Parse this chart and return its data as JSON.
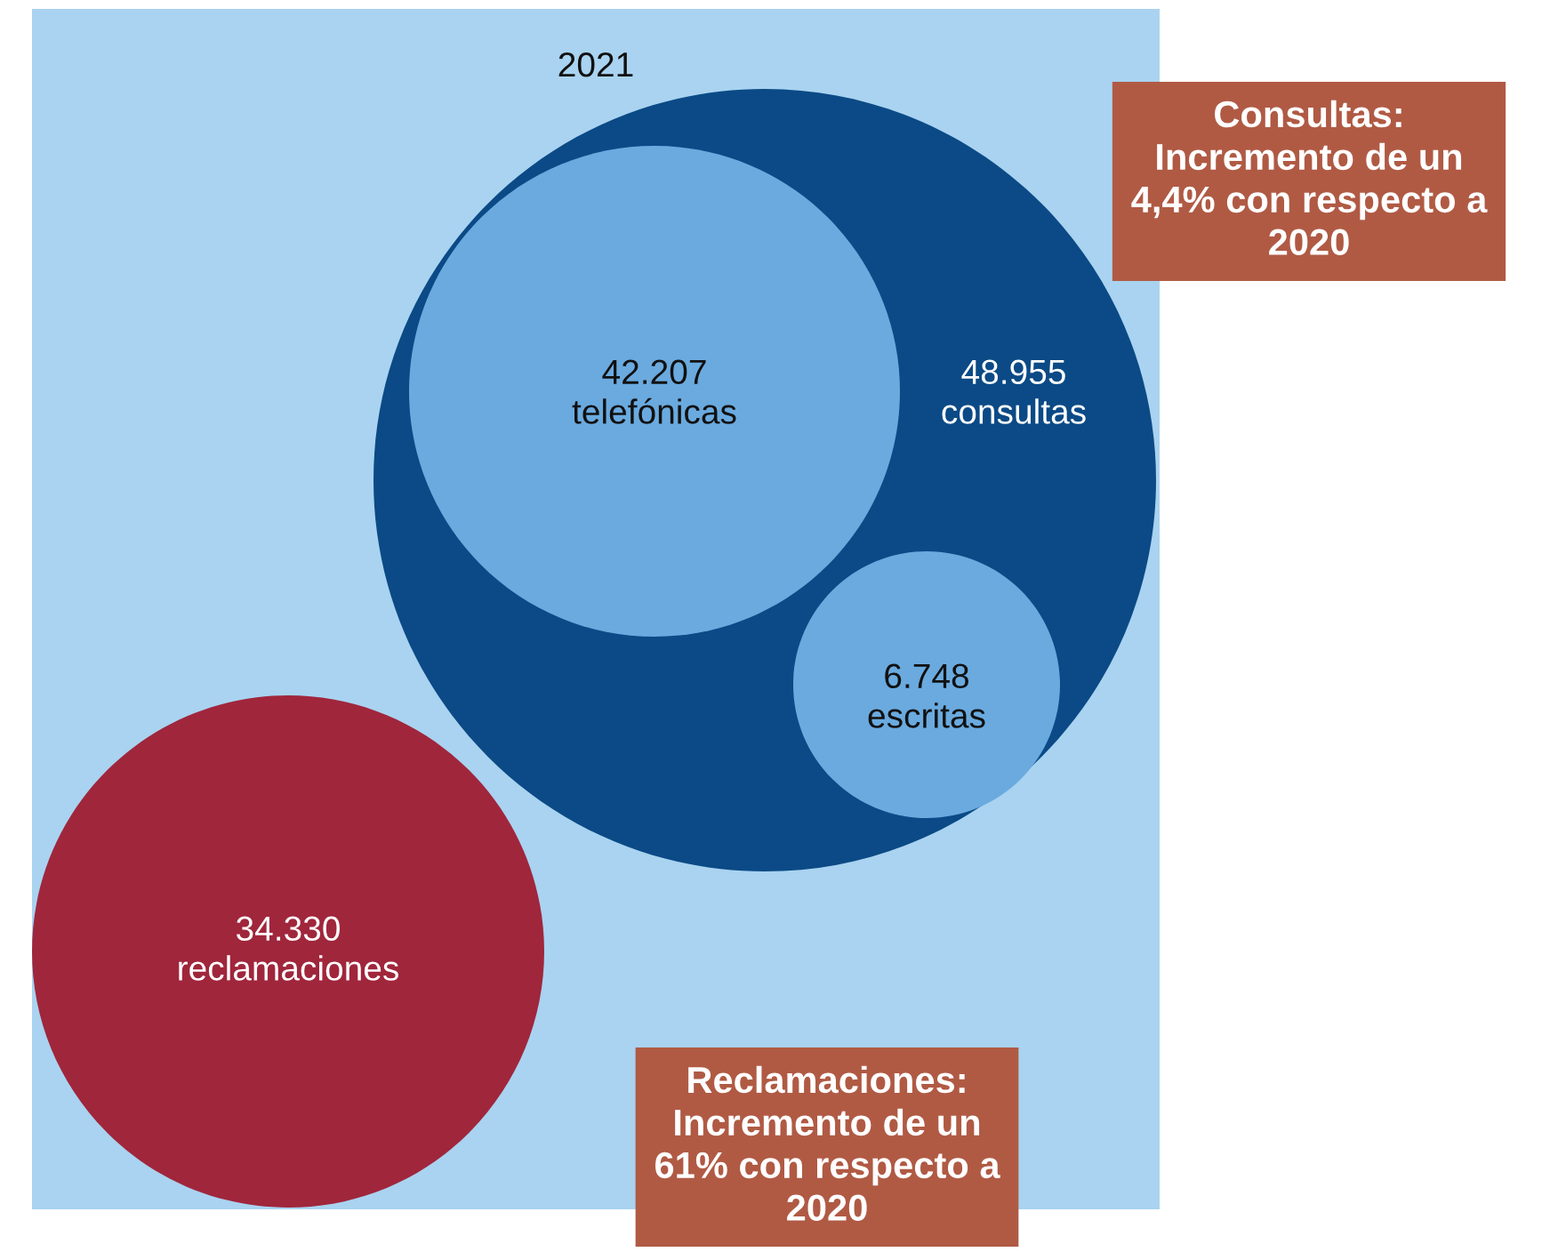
{
  "chart_data": {
    "type": "other",
    "title": "2021",
    "categories": [
      "consultas",
      "telefónicas",
      "escritas",
      "reclamaciones"
    ],
    "values": [
      48955,
      42207,
      6748,
      34330
    ],
    "value_labels": [
      "48.955",
      "42.207",
      "6.748",
      "34.330"
    ],
    "colors": [
      "#0b4a86",
      "#6aaadf",
      "#6aaadf",
      "#a0263c"
    ],
    "annotations": [
      "Consultas:\nIncremento de un\n4,4% con respecto a\n2020",
      "Reclamaciones:\nIncremento de un\n61% con respecto a\n2020"
    ]
  }
}
